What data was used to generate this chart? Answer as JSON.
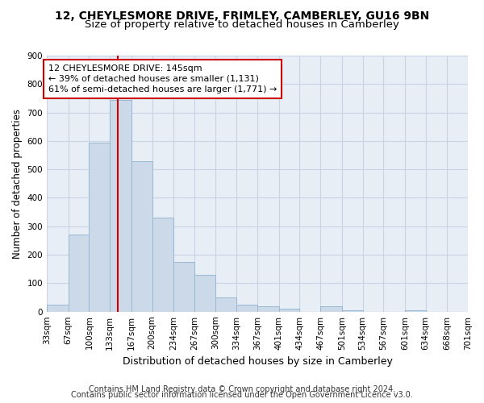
{
  "title": "12, CHEYLESMORE DRIVE, FRIMLEY, CAMBERLEY, GU16 9BN",
  "subtitle": "Size of property relative to detached houses in Camberley",
  "xlabel": "Distribution of detached houses by size in Camberley",
  "ylabel": "Number of detached properties",
  "footer_line1": "Contains HM Land Registry data © Crown copyright and database right 2024.",
  "footer_line2": "Contains public sector information licensed under the Open Government Licence v3.0.",
  "bin_edges": [
    33,
    67,
    100,
    133,
    167,
    200,
    234,
    267,
    300,
    334,
    367,
    401,
    434,
    467,
    501,
    534,
    567,
    601,
    634,
    668,
    701
  ],
  "bin_labels": [
    "33sqm",
    "67sqm",
    "100sqm",
    "133sqm",
    "167sqm",
    "200sqm",
    "234sqm",
    "267sqm",
    "300sqm",
    "334sqm",
    "367sqm",
    "401sqm",
    "434sqm",
    "467sqm",
    "501sqm",
    "534sqm",
    "567sqm",
    "601sqm",
    "634sqm",
    "668sqm",
    "701sqm"
  ],
  "counts": [
    25,
    270,
    595,
    745,
    530,
    330,
    175,
    130,
    50,
    25,
    20,
    10,
    0,
    20,
    5,
    0,
    0,
    5,
    0,
    0
  ],
  "bar_color": "#ccd9e8",
  "bar_edgecolor": "#9ab8d0",
  "property_size": 145,
  "vline_color": "#cc0000",
  "annotation_line1": "12 CHEYLESMORE DRIVE: 145sqm",
  "annotation_line2": "← 39% of detached houses are smaller (1,131)",
  "annotation_line3": "61% of semi-detached houses are larger (1,771) →",
  "annotation_box_edgecolor": "#cc0000",
  "ylim": [
    0,
    900
  ],
  "yticks": [
    0,
    100,
    200,
    300,
    400,
    500,
    600,
    700,
    800,
    900
  ],
  "grid_color": "#c8d4e4",
  "bg_color": "#e8eef6",
  "title_fontsize": 10,
  "subtitle_fontsize": 9.5,
  "xlabel_fontsize": 9,
  "ylabel_fontsize": 8.5,
  "tick_fontsize": 7.5,
  "footer_fontsize": 7,
  "annotation_fontsize": 8
}
